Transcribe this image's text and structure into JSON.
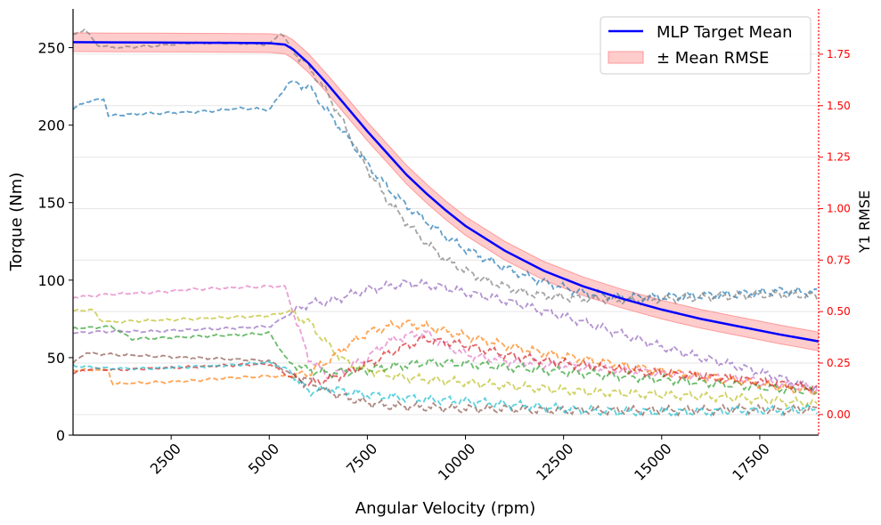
{
  "chart_data": {
    "type": "line",
    "xlabel": "Angular Velocity (rpm)",
    "ylabel": "Torque (Nm)",
    "y2label": "Y1 RMSE",
    "xlim": [
      0,
      19000
    ],
    "ylim": [
      0,
      275
    ],
    "y2lim": [
      -0.1,
      1.97
    ],
    "x_ticks": [
      2500,
      5000,
      7500,
      10000,
      12500,
      15000,
      17500
    ],
    "y_ticks": [
      0,
      50,
      100,
      150,
      200,
      250
    ],
    "y2_ticks": [
      0.0,
      0.25,
      0.5,
      0.75,
      1.0,
      1.25,
      1.5,
      1.75
    ],
    "y2_tick_labels": [
      "0.00",
      "0.25",
      "0.50",
      "0.75",
      "1.00",
      "1.25",
      "1.50",
      "1.75"
    ],
    "grid": "horizontal, secondary axis",
    "legend": {
      "placement": "top-right",
      "entries": [
        "MLP Target Mean",
        "± Mean RMSE"
      ]
    },
    "colors": {
      "mean": "#0000ff",
      "band": "#ff9999",
      "right_axis": "#ff0000"
    },
    "mean_line": {
      "name": "MLP Target Mean",
      "x": [
        0,
        1000,
        2000,
        3000,
        4000,
        5000,
        5400,
        5600,
        6000,
        6500,
        7000,
        7500,
        8000,
        8500,
        9000,
        9500,
        10000,
        11000,
        12000,
        13000,
        14000,
        15000,
        16000,
        17000,
        18000,
        19000
      ],
      "y": [
        253.5,
        253.4,
        253.3,
        253.2,
        253.1,
        252.9,
        252,
        249,
        240,
        226,
        211,
        196,
        182,
        168,
        156,
        145,
        135,
        119,
        106,
        96,
        88,
        81,
        75,
        70,
        65,
        60.5
      ]
    },
    "rmse_band": {
      "name": "± Mean RMSE",
      "halfwidth": 6
    },
    "sample_series": [
      {
        "color": "#1f77b4",
        "x": [
          0,
          300,
          800,
          900,
          1500,
          2500,
          3500,
          4300,
          5000,
          5300,
          5500,
          6000,
          6500,
          7000,
          7500,
          8000,
          8500,
          9000,
          9500,
          10000,
          10500,
          11000,
          11500,
          12000,
          12500,
          13000,
          13500,
          14000,
          15000,
          16000,
          17000,
          18000,
          19000
        ],
        "y": [
          210,
          215,
          217,
          206,
          207,
          208,
          209,
          211,
          210,
          220,
          228,
          225,
          208,
          192,
          175,
          160,
          148,
          138,
          128,
          120,
          114,
          108,
          103,
          99,
          95,
          92,
          90,
          89,
          89,
          90,
          91,
          93,
          92
        ]
      },
      {
        "color": "#7f7f7f",
        "x": [
          0,
          300,
          600,
          1000,
          2000,
          3000,
          4000,
          5000,
          5300,
          5600,
          6000,
          6500,
          7000,
          7500,
          8000,
          8500,
          9000,
          9500,
          10000,
          10500,
          11000,
          11500,
          12000,
          12500,
          13000,
          13500,
          14000,
          15000,
          16000,
          17000,
          18000,
          19000
        ],
        "y": [
          258,
          262,
          252,
          250,
          251,
          253,
          253,
          252,
          260,
          248,
          238,
          220,
          196,
          172,
          152,
          137,
          124,
          113,
          106,
          100,
          96,
          92,
          90,
          89,
          88,
          88,
          87,
          88,
          89,
          90,
          91,
          90
        ]
      },
      {
        "color": "#e377c2",
        "x": [
          0,
          1000,
          2000,
          3000,
          4000,
          5000,
          5400,
          5600,
          6000,
          6500,
          7000,
          7500,
          8000,
          8500,
          9000,
          9500,
          10000,
          11000,
          12000,
          13000,
          14000,
          15000,
          16000,
          17000,
          18000,
          19000
        ],
        "y": [
          89,
          91,
          92,
          94,
          95,
          96,
          96,
          80,
          50,
          38,
          43,
          50,
          60,
          64,
          66,
          58,
          52,
          48,
          46,
          44,
          42,
          40,
          38,
          36,
          33,
          30
        ]
      },
      {
        "color": "#9467bd",
        "x": [
          0,
          1000,
          2000,
          3000,
          4000,
          5000,
          5500,
          6000,
          6500,
          7000,
          7500,
          8000,
          8500,
          9000,
          9500,
          10000,
          11000,
          12000,
          13000,
          14000,
          15000,
          16000,
          17000,
          18000,
          19000
        ],
        "y": [
          66,
          67,
          67,
          68,
          69,
          70,
          78,
          85,
          86,
          90,
          94,
          96,
          98,
          97,
          95,
          92,
          87,
          80,
          73,
          65,
          57,
          50,
          44,
          37,
          29
        ]
      },
      {
        "color": "#bcbd22",
        "x": [
          0,
          500,
          700,
          1000,
          2000,
          3000,
          4000,
          5000,
          5500,
          6000,
          6500,
          7000,
          7500,
          8000,
          8500,
          9000,
          10000,
          11000,
          12000,
          13000,
          14000,
          15000,
          16000,
          17000,
          18000,
          19000
        ],
        "y": [
          80,
          81,
          74,
          73,
          74,
          75,
          76,
          77,
          80,
          73,
          58,
          46,
          42,
          39,
          37,
          36,
          34,
          32,
          30,
          28,
          27,
          26,
          25,
          24,
          22,
          20
        ]
      },
      {
        "color": "#2ca02c",
        "x": [
          0,
          1000,
          1500,
          2500,
          3500,
          4500,
          5000,
          5500,
          6000,
          6500,
          7000,
          7500,
          8000,
          8500,
          9000,
          10000,
          11000,
          12000,
          13000,
          14000,
          15000,
          16000,
          17000,
          18000,
          19000
        ],
        "y": [
          69,
          70,
          62,
          63,
          64,
          65,
          66,
          47,
          42,
          40,
          41,
          42,
          44,
          45,
          47,
          46,
          44,
          42,
          40,
          38,
          36,
          34,
          32,
          30,
          28
        ]
      },
      {
        "color": "#ff7f0e",
        "x": [
          0,
          900,
          1000,
          2000,
          3000,
          4000,
          5000,
          5500,
          6000,
          6500,
          7000,
          7500,
          8000,
          8500,
          9000,
          9500,
          10000,
          11000,
          12000,
          13000,
          14000,
          15000,
          16000,
          17000,
          18000,
          19000
        ],
        "y": [
          42,
          42,
          33,
          34,
          35,
          37,
          38,
          38,
          40,
          48,
          58,
          66,
          70,
          72,
          70,
          67,
          64,
          58,
          53,
          49,
          45,
          41,
          38,
          35,
          31,
          28
        ]
      },
      {
        "color": "#d62728",
        "x": [
          0,
          500,
          1000,
          2000,
          3000,
          4000,
          5000,
          5500,
          6000,
          6500,
          7000,
          7500,
          8000,
          8500,
          9000,
          10000,
          11000,
          12000,
          13000,
          14000,
          15000,
          16000,
          17000,
          18000,
          19000
        ],
        "y": [
          40,
          43,
          42,
          43,
          44,
          45,
          46,
          38,
          33,
          36,
          40,
          46,
          52,
          58,
          62,
          58,
          52,
          48,
          45,
          42,
          40,
          38,
          36,
          33,
          30
        ]
      },
      {
        "color": "#8c564b",
        "x": [
          0,
          300,
          1000,
          2000,
          3000,
          4000,
          5000,
          5500,
          6000,
          6500,
          7000,
          7500,
          8000,
          9000,
          10000,
          11000,
          12000,
          13000,
          14000,
          15000,
          16000,
          17000,
          18000,
          19000
        ],
        "y": [
          46,
          53,
          52,
          51,
          50,
          49,
          48,
          40,
          35,
          28,
          24,
          21,
          19,
          18,
          17,
          17,
          16,
          16,
          16,
          16,
          16,
          17,
          16,
          17
        ]
      },
      {
        "color": "#17becf",
        "x": [
          0,
          300,
          1000,
          2000,
          3000,
          4000,
          5000,
          5500,
          6000,
          6500,
          7000,
          7500,
          8000,
          9000,
          10000,
          11000,
          12000,
          13000,
          14000,
          15000,
          16000,
          17000,
          18000,
          19000
        ],
        "y": [
          45,
          44,
          43,
          43,
          44,
          45,
          47,
          42,
          28,
          30,
          28,
          26,
          25,
          23,
          22,
          20,
          18,
          16,
          15,
          15,
          15,
          16,
          16,
          17
        ]
      }
    ]
  }
}
